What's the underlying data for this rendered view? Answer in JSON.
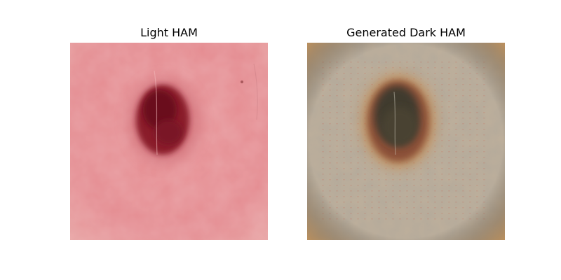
{
  "figure": {
    "panels": [
      {
        "title": "Light HAM"
      },
      {
        "title": "Generated Dark HAM"
      }
    ]
  }
}
